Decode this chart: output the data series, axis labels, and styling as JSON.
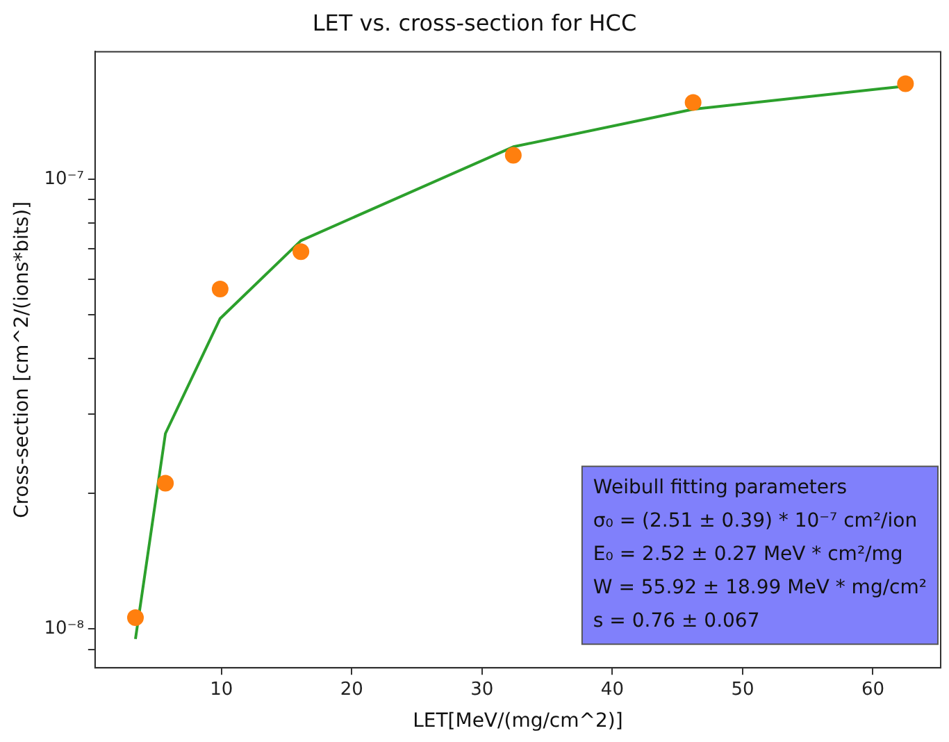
{
  "chart_data": {
    "type": "scatter",
    "title": "LET vs. cross-section for HCC",
    "xlabel": "LET[MeV/(mg/cm^2)]",
    "ylabel": "Cross-section [cm^2/(ions*bits)]",
    "x": [
      3.4,
      5.7,
      9.9,
      16.1,
      32.4,
      46.2,
      62.5
    ],
    "series": [
      {
        "type": "scatter",
        "color": "#ff7f0e",
        "marker": "circle",
        "values": [
          1.06e-08,
          2.11e-08,
          5.7e-08,
          6.9e-08,
          1.13e-07,
          1.48e-07,
          1.63e-07
        ]
      },
      {
        "type": "line",
        "color": "#2ca02c",
        "marker": "none",
        "line_style": "solid",
        "values": [
          9.5e-09,
          2.72e-08,
          4.9e-08,
          7.3e-08,
          1.18e-07,
          1.43e-07,
          1.61e-07
        ]
      }
    ],
    "log": "y",
    "xlim": [
      0.3,
      65.2
    ],
    "xticks": [
      10,
      20,
      30,
      40,
      50,
      60
    ],
    "ylim": [
      8.2e-09,
      1.92e-07
    ],
    "yticks": [
      {
        "value": 9e-09,
        "label": null
      },
      {
        "value": 1e-08,
        "label": "10⁻⁸"
      },
      {
        "value": 2e-08,
        "label": null
      },
      {
        "value": 3e-08,
        "label": null
      },
      {
        "value": 4e-08,
        "label": null
      },
      {
        "value": 5e-08,
        "label": null
      },
      {
        "value": 6e-08,
        "label": null
      },
      {
        "value": 7e-08,
        "label": null
      },
      {
        "value": 8e-08,
        "label": null
      },
      {
        "value": 9e-08,
        "label": null
      },
      {
        "value": 1e-07,
        "label": "10⁻⁷"
      }
    ],
    "grid": false,
    "legend": false,
    "annotations": [
      "Weibull fitting parameters",
      "σ₀ = (2.51 ± 0.39) * 10⁻⁷ cm²/ion",
      "E₀ = 2.52 ± 0.27 MeV * cm²/mg",
      "W = 55.92 ± 18.99 MeV * mg/cm²",
      "s = 0.76 ± 0.067"
    ]
  }
}
